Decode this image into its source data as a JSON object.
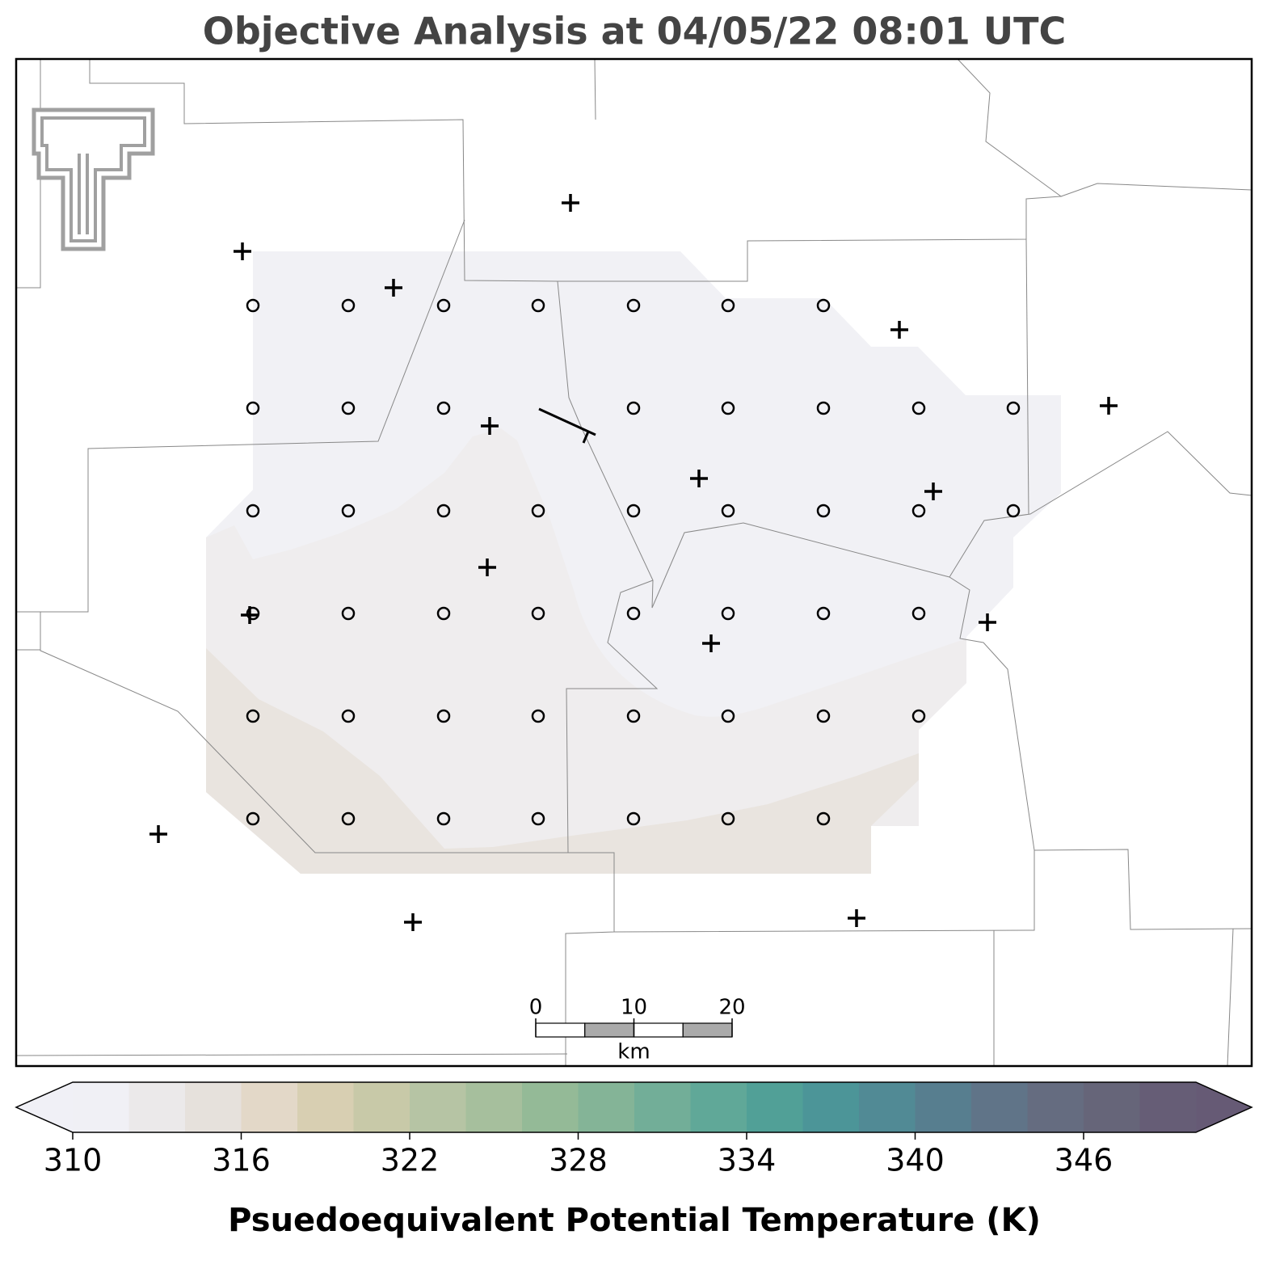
{
  "title": "Objective Analysis at 04/05/22 08:01 UTC",
  "scale_bar": {
    "ticks": [
      0,
      10,
      20
    ],
    "unit": "km"
  },
  "colorbar": {
    "label": "Psuedoequivalent Potential Temperature (K)",
    "levels": [
      310,
      312,
      314,
      316,
      318,
      320,
      322,
      324,
      326,
      328,
      330,
      332,
      334,
      336,
      338,
      340,
      342,
      344,
      346,
      348,
      350
    ],
    "colors": [
      "#f0f0f5",
      "#ebe9ea",
      "#e6e1dc",
      "#e3d8c8",
      "#d8cfb2",
      "#c8c9a8",
      "#b6c4a4",
      "#a6bf9d",
      "#94ba97",
      "#84b497",
      "#72ae98",
      "#60a898",
      "#51a097",
      "#4c9598",
      "#518a95",
      "#577e8f",
      "#607488",
      "#656c80",
      "#666579",
      "#665d76"
    ],
    "under_color": "#f0f0f6",
    "over_color": "#665a75",
    "ticks": [
      310,
      316,
      322,
      328,
      334,
      340,
      346
    ]
  }
}
